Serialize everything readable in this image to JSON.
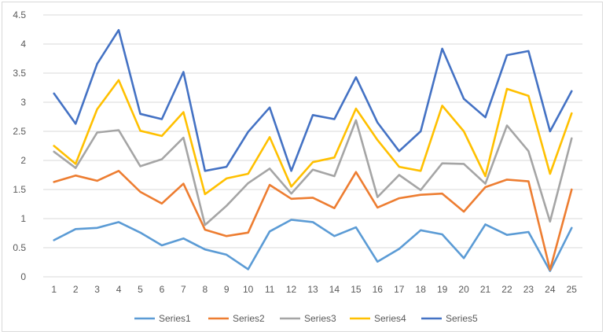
{
  "chart_data": {
    "type": "line",
    "x": [
      "1",
      "2",
      "3",
      "4",
      "5",
      "6",
      "7",
      "8",
      "9",
      "10",
      "11",
      "12",
      "13",
      "14",
      "15",
      "16",
      "17",
      "18",
      "19",
      "20",
      "21",
      "22",
      "23",
      "24",
      "25"
    ],
    "ylim": [
      0,
      4.5
    ],
    "yticks": [
      "0",
      "0.5",
      "1",
      "1.5",
      "2",
      "2.5",
      "3",
      "3.5",
      "4",
      "4.5"
    ],
    "grid": true,
    "legend_position": "bottom",
    "series": [
      {
        "name": "Series1",
        "color": "#5b9bd5",
        "values": [
          0.63,
          0.82,
          0.84,
          0.94,
          0.76,
          0.54,
          0.66,
          0.47,
          0.38,
          0.13,
          0.78,
          0.98,
          0.94,
          0.7,
          0.85,
          0.26,
          0.48,
          0.8,
          0.73,
          0.32,
          0.9,
          0.72,
          0.77,
          0.1,
          0.84
        ]
      },
      {
        "name": "Series2",
        "color": "#ed7d31",
        "values": [
          1.63,
          1.74,
          1.65,
          1.82,
          1.46,
          1.26,
          1.6,
          0.81,
          0.7,
          0.76,
          1.58,
          1.34,
          1.36,
          1.18,
          1.8,
          1.19,
          1.35,
          1.41,
          1.43,
          1.12,
          1.54,
          1.67,
          1.64,
          0.12,
          1.5
        ]
      },
      {
        "name": "Series3",
        "color": "#a5a5a5",
        "values": [
          2.15,
          1.87,
          2.48,
          2.52,
          1.9,
          2.02,
          2.39,
          0.89,
          1.22,
          1.61,
          1.86,
          1.43,
          1.84,
          1.73,
          2.69,
          1.37,
          1.75,
          1.49,
          1.95,
          1.94,
          1.6,
          2.6,
          2.16,
          0.95,
          2.38
        ]
      },
      {
        "name": "Series4",
        "color": "#ffc000",
        "values": [
          2.25,
          1.94,
          2.88,
          3.38,
          2.51,
          2.42,
          2.83,
          1.42,
          1.69,
          1.77,
          2.4,
          1.55,
          1.97,
          2.05,
          2.89,
          2.35,
          1.89,
          1.82,
          2.94,
          2.5,
          1.73,
          3.23,
          3.11,
          1.77,
          2.81
        ]
      },
      {
        "name": "Series5",
        "color": "#4472c4",
        "values": [
          3.15,
          2.63,
          3.66,
          4.24,
          2.8,
          2.71,
          3.52,
          1.82,
          1.89,
          2.49,
          2.91,
          1.82,
          2.78,
          2.71,
          3.43,
          2.65,
          2.16,
          2.5,
          3.92,
          3.06,
          2.74,
          3.81,
          3.88,
          2.5,
          3.19
        ]
      }
    ]
  }
}
